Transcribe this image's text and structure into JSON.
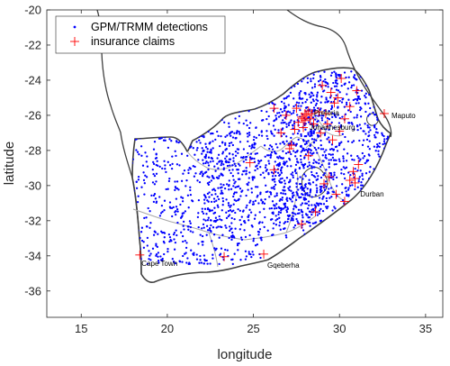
{
  "chart_data": {
    "type": "scatter",
    "xlabel": "longitude",
    "ylabel": "latitude",
    "xlim": [
      13,
      36
    ],
    "ylim": [
      -37.5,
      -20
    ],
    "xticks": [
      15,
      20,
      25,
      30,
      35
    ],
    "yticks": [
      -20,
      -22,
      -24,
      -26,
      -28,
      -30,
      -32,
      -34,
      -36
    ],
    "grid": false,
    "legend": "top-left",
    "series": [
      {
        "name": "GPM/TRMM detections",
        "marker": "dot",
        "color": "#0000ff"
      },
      {
        "name": "insurance claims",
        "marker": "plus",
        "color": "#ff0000"
      }
    ],
    "insurance_claims": [
      {
        "x": 18.4,
        "y": -33.95
      },
      {
        "x": 23.3,
        "y": -34.05
      },
      {
        "x": 25.6,
        "y": -33.9
      },
      {
        "x": 32.6,
        "y": -25.9
      },
      {
        "x": 30.9,
        "y": -29.85
      },
      {
        "x": 30.6,
        "y": -29.7
      },
      {
        "x": 30.3,
        "y": -30.9
      },
      {
        "x": 29.8,
        "y": -30.5
      },
      {
        "x": 29.4,
        "y": -29.5
      },
      {
        "x": 30.9,
        "y": -29.6
      },
      {
        "x": 26.2,
        "y": -29.1
      },
      {
        "x": 24.8,
        "y": -28.7
      },
      {
        "x": 26.6,
        "y": -27.0
      },
      {
        "x": 27.9,
        "y": -26.2
      },
      {
        "x": 28.1,
        "y": -26.0
      },
      {
        "x": 28.2,
        "y": -25.75
      },
      {
        "x": 28.0,
        "y": -26.3
      },
      {
        "x": 27.8,
        "y": -26.1
      },
      {
        "x": 28.3,
        "y": -26.2
      },
      {
        "x": 27.6,
        "y": -26.4
      },
      {
        "x": 28.4,
        "y": -25.9
      },
      {
        "x": 27.5,
        "y": -25.6
      },
      {
        "x": 28.5,
        "y": -26.5
      },
      {
        "x": 28.0,
        "y": -25.9
      },
      {
        "x": 27.9,
        "y": -26.7
      },
      {
        "x": 27.4,
        "y": -26.8
      },
      {
        "x": 28.8,
        "y": -25.8
      },
      {
        "x": 29.2,
        "y": -25.9
      },
      {
        "x": 29.5,
        "y": -24.7
      },
      {
        "x": 29.0,
        "y": -24.3
      },
      {
        "x": 30.6,
        "y": -25.5
      },
      {
        "x": 30.3,
        "y": -26.2
      },
      {
        "x": 31.0,
        "y": -24.6
      },
      {
        "x": 30.1,
        "y": -23.9
      },
      {
        "x": 29.9,
        "y": -25.0
      },
      {
        "x": 28.9,
        "y": -27.0
      },
      {
        "x": 29.6,
        "y": -27.4
      },
      {
        "x": 27.1,
        "y": -27.9
      },
      {
        "x": 28.2,
        "y": -28.3
      },
      {
        "x": 29.1,
        "y": -29.9
      },
      {
        "x": 28.6,
        "y": -31.5
      },
      {
        "x": 27.8,
        "y": -32.2
      },
      {
        "x": 27.2,
        "y": -27.7
      },
      {
        "x": 31.1,
        "y": -28.8
      },
      {
        "x": 30.8,
        "y": -29.2
      },
      {
        "x": 26.9,
        "y": -26.0
      },
      {
        "x": 26.2,
        "y": -25.6
      },
      {
        "x": 29.3,
        "y": -26.5
      },
      {
        "x": 30.0,
        "y": -26.9
      },
      {
        "x": 29.7,
        "y": -25.3
      }
    ],
    "annotations": [
      {
        "text": "Pretoria",
        "x": 28.2,
        "y": -25.75
      },
      {
        "text": "Johannesburg",
        "x": 28.05,
        "y": -26.2
      },
      {
        "text": "Maputo",
        "x": 32.6,
        "y": -25.95
      },
      {
        "text": "Durban",
        "x": 31.0,
        "y": -29.85
      },
      {
        "text": "Cape Town",
        "x": 18.4,
        "y": -33.95
      },
      {
        "text": "Gqeberha",
        "x": 25.6,
        "y": -33.95
      }
    ]
  }
}
